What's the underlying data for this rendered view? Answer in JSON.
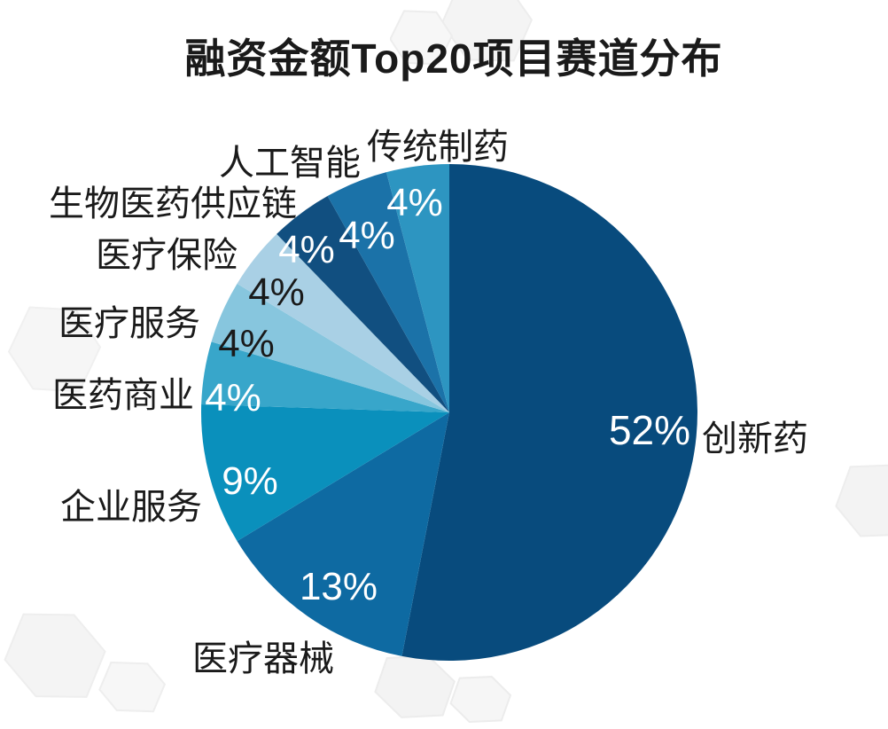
{
  "title": "融资金额Top20项目赛道分布",
  "chart_data": {
    "type": "pie",
    "title": "融资金额Top20项目赛道分布",
    "direction": "clockwise",
    "start_angle_deg": 0,
    "values_unit": "%",
    "legend": "none",
    "slices": [
      {
        "label": "创新药",
        "value": 52,
        "percent_label": "52%",
        "color": "#084B7D",
        "percent_label_color": "#ffffff"
      },
      {
        "label": "医疗器械",
        "value": 13,
        "percent_label": "13%",
        "color": "#0E6AA2",
        "percent_label_color": "#ffffff"
      },
      {
        "label": "企业服务",
        "value": 9,
        "percent_label": "9%",
        "color": "#0A90BC",
        "percent_label_color": "#ffffff"
      },
      {
        "label": "医药商业",
        "value": 4,
        "percent_label": "4%",
        "color": "#38A6CA",
        "percent_label_color": "#ffffff"
      },
      {
        "label": "医疗服务",
        "value": 4,
        "percent_label": "4%",
        "color": "#87C6DE",
        "percent_label_color": "#1a1a1a"
      },
      {
        "label": "医疗保险",
        "value": 4,
        "percent_label": "4%",
        "color": "#A9D0E5",
        "percent_label_color": "#1a1a1a"
      },
      {
        "label": "生物医药供应链",
        "value": 4,
        "percent_label": "4%",
        "color": "#114F80",
        "percent_label_color": "#ffffff"
      },
      {
        "label": "人工智能",
        "value": 4,
        "percent_label": "4%",
        "color": "#1B72A8",
        "percent_label_color": "#ffffff"
      },
      {
        "label": "传统制药",
        "value": 4,
        "percent_label": "4%",
        "color": "#2D95C1",
        "percent_label_color": "#ffffff"
      }
    ]
  }
}
